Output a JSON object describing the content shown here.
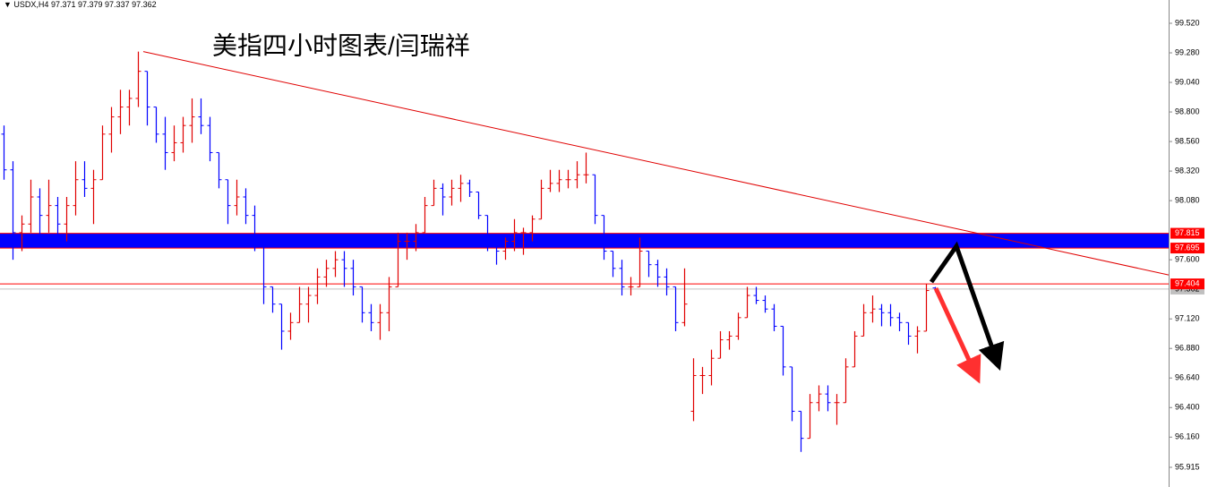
{
  "chart_data": {
    "type": "ohlc",
    "symbol": "USDX,H4",
    "title": "美指四小时图表/闫瑞祥",
    "ylim": [
      95.755,
      99.709
    ],
    "yticks": [
      {
        "value": 99.52,
        "label": "99.520"
      },
      {
        "value": 99.28,
        "label": "99.280"
      },
      {
        "value": 99.04,
        "label": "99.040"
      },
      {
        "value": 98.8,
        "label": "98.800"
      },
      {
        "value": 98.56,
        "label": "98.560"
      },
      {
        "value": 98.32,
        "label": "98.320"
      },
      {
        "value": 98.08,
        "label": "98.080"
      },
      {
        "value": 97.6,
        "label": "97.600"
      },
      {
        "value": 97.12,
        "label": "97.120"
      },
      {
        "value": 96.88,
        "label": "96.880"
      },
      {
        "value": 96.64,
        "label": "96.640"
      },
      {
        "value": 96.4,
        "label": "96.400"
      },
      {
        "value": 96.16,
        "label": "96.160"
      },
      95.915
    ],
    "up_color": "#e00000",
    "down_color": "#0000ff",
    "open": [
      98.62,
      98.33,
      97.82,
      97.89,
      98.11,
      97.96,
      98.04,
      97.89,
      98.04,
      98.25,
      98.18,
      98.25,
      98.62,
      98.76,
      98.84,
      98.91,
      99.13,
      98.84,
      98.62,
      98.47,
      98.55,
      98.69,
      98.76,
      98.69,
      98.47,
      98.25,
      98.04,
      98.11,
      97.96,
      97.75,
      97.38,
      97.24,
      97.02,
      97.09,
      97.24,
      97.31,
      97.46,
      97.53,
      97.6,
      97.53,
      97.38,
      97.17,
      97.09,
      97.17,
      97.38,
      97.75,
      97.75,
      97.82,
      98.04,
      98.18,
      98.11,
      98.18,
      98.22,
      98.15,
      97.96,
      97.75,
      97.67,
      97.75,
      97.82,
      97.82,
      97.93,
      98.18,
      98.22,
      98.25,
      98.25,
      98.29,
      98.29,
      97.96,
      97.67,
      97.53,
      97.38,
      97.38,
      97.67,
      97.56,
      97.46,
      97.38,
      97.09,
      96.37,
      96.66,
      96.66,
      96.8,
      96.95,
      96.98,
      97.13,
      97.31,
      97.27,
      97.2,
      97.06,
      96.73,
      96.37,
      96.15,
      96.44,
      96.51,
      96.44,
      96.44,
      96.73,
      96.98,
      97.17,
      97.2,
      97.17,
      97.13,
      97.09,
      96.98,
      97.02,
      97.371
    ],
    "high": [
      98.69,
      98.4,
      97.96,
      98.25,
      98.18,
      98.25,
      98.11,
      98.11,
      98.4,
      98.4,
      98.33,
      98.69,
      98.84,
      98.98,
      98.98,
      99.29,
      99.13,
      98.84,
      98.76,
      98.69,
      98.76,
      98.91,
      98.91,
      98.76,
      98.47,
      98.25,
      98.25,
      98.18,
      98.04,
      97.75,
      97.38,
      97.24,
      97.17,
      97.38,
      97.38,
      97.53,
      97.6,
      97.67,
      97.67,
      97.6,
      97.38,
      97.24,
      97.24,
      97.46,
      97.82,
      97.82,
      97.89,
      98.11,
      98.25,
      98.22,
      98.25,
      98.29,
      98.25,
      98.15,
      97.96,
      97.78,
      97.78,
      97.93,
      97.86,
      97.96,
      98.25,
      98.33,
      98.33,
      98.33,
      98.4,
      98.47,
      98.29,
      97.96,
      97.67,
      97.6,
      97.46,
      97.78,
      97.67,
      97.6,
      97.53,
      97.38,
      97.53,
      96.8,
      96.73,
      96.87,
      97.02,
      97.02,
      97.17,
      97.38,
      97.38,
      97.31,
      97.24,
      97.06,
      96.73,
      96.37,
      96.51,
      96.58,
      96.58,
      96.51,
      96.8,
      97.02,
      97.24,
      97.31,
      97.24,
      97.24,
      97.17,
      97.09,
      97.06,
      97.404,
      97.379
    ],
    "low": [
      98.25,
      97.6,
      97.67,
      97.82,
      97.75,
      97.82,
      97.75,
      97.75,
      97.96,
      98.11,
      97.89,
      98.25,
      98.47,
      98.62,
      98.69,
      98.84,
      98.69,
      98.55,
      98.33,
      98.4,
      98.47,
      98.55,
      98.62,
      98.4,
      98.18,
      97.89,
      97.96,
      97.89,
      97.67,
      97.24,
      97.17,
      96.87,
      96.95,
      97.09,
      97.09,
      97.24,
      97.38,
      97.46,
      97.38,
      97.31,
      97.09,
      97.02,
      96.95,
      97.02,
      97.38,
      97.6,
      97.67,
      97.82,
      98.04,
      97.96,
      98.04,
      98.07,
      98.11,
      97.93,
      97.67,
      97.56,
      97.6,
      97.67,
      97.64,
      97.75,
      97.93,
      98.15,
      98.15,
      98.18,
      98.18,
      98.22,
      97.89,
      97.6,
      97.46,
      97.31,
      97.31,
      97.38,
      97.46,
      97.38,
      97.31,
      97.02,
      97.06,
      96.29,
      96.51,
      96.58,
      96.8,
      96.87,
      96.95,
      97.13,
      97.24,
      97.17,
      97.02,
      96.66,
      96.29,
      96.04,
      96.15,
      96.37,
      96.37,
      96.26,
      96.44,
      96.73,
      96.98,
      97.09,
      97.06,
      97.06,
      97.02,
      96.91,
      96.84,
      97.02,
      97.337
    ],
    "close": [
      98.33,
      97.82,
      97.89,
      98.11,
      97.96,
      98.04,
      97.89,
      98.04,
      98.25,
      98.18,
      98.25,
      98.62,
      98.76,
      98.84,
      98.91,
      99.13,
      98.84,
      98.62,
      98.47,
      98.55,
      98.69,
      98.76,
      98.69,
      98.47,
      98.25,
      98.04,
      98.11,
      97.96,
      97.75,
      97.38,
      97.24,
      97.02,
      97.09,
      97.24,
      97.31,
      97.46,
      97.53,
      97.6,
      97.53,
      97.38,
      97.17,
      97.09,
      97.17,
      97.38,
      97.75,
      97.75,
      97.82,
      98.04,
      98.18,
      98.11,
      98.18,
      98.22,
      98.15,
      97.96,
      97.75,
      97.67,
      97.75,
      97.82,
      97.82,
      97.93,
      98.18,
      98.22,
      98.25,
      98.25,
      98.29,
      98.29,
      97.96,
      97.67,
      97.53,
      97.38,
      97.38,
      97.67,
      97.56,
      97.46,
      97.38,
      97.09,
      97.24,
      96.66,
      96.66,
      96.8,
      96.95,
      96.98,
      97.13,
      97.31,
      97.27,
      97.2,
      97.06,
      96.73,
      96.37,
      96.15,
      96.44,
      96.51,
      96.44,
      96.44,
      96.73,
      96.98,
      97.17,
      97.2,
      97.17,
      97.13,
      97.09,
      96.98,
      97.02,
      97.35,
      97.362
    ],
    "zone": {
      "low": 97.695,
      "high": 97.815,
      "color": "#0000ff",
      "border": "#ff0000"
    },
    "level": {
      "value": 97.404,
      "color": "#ff0000"
    },
    "trendline": {
      "x": [
        15.6,
        130.1
      ],
      "y": [
        99.29,
        97.477
      ],
      "color": "#e00000"
    }
  }
}
